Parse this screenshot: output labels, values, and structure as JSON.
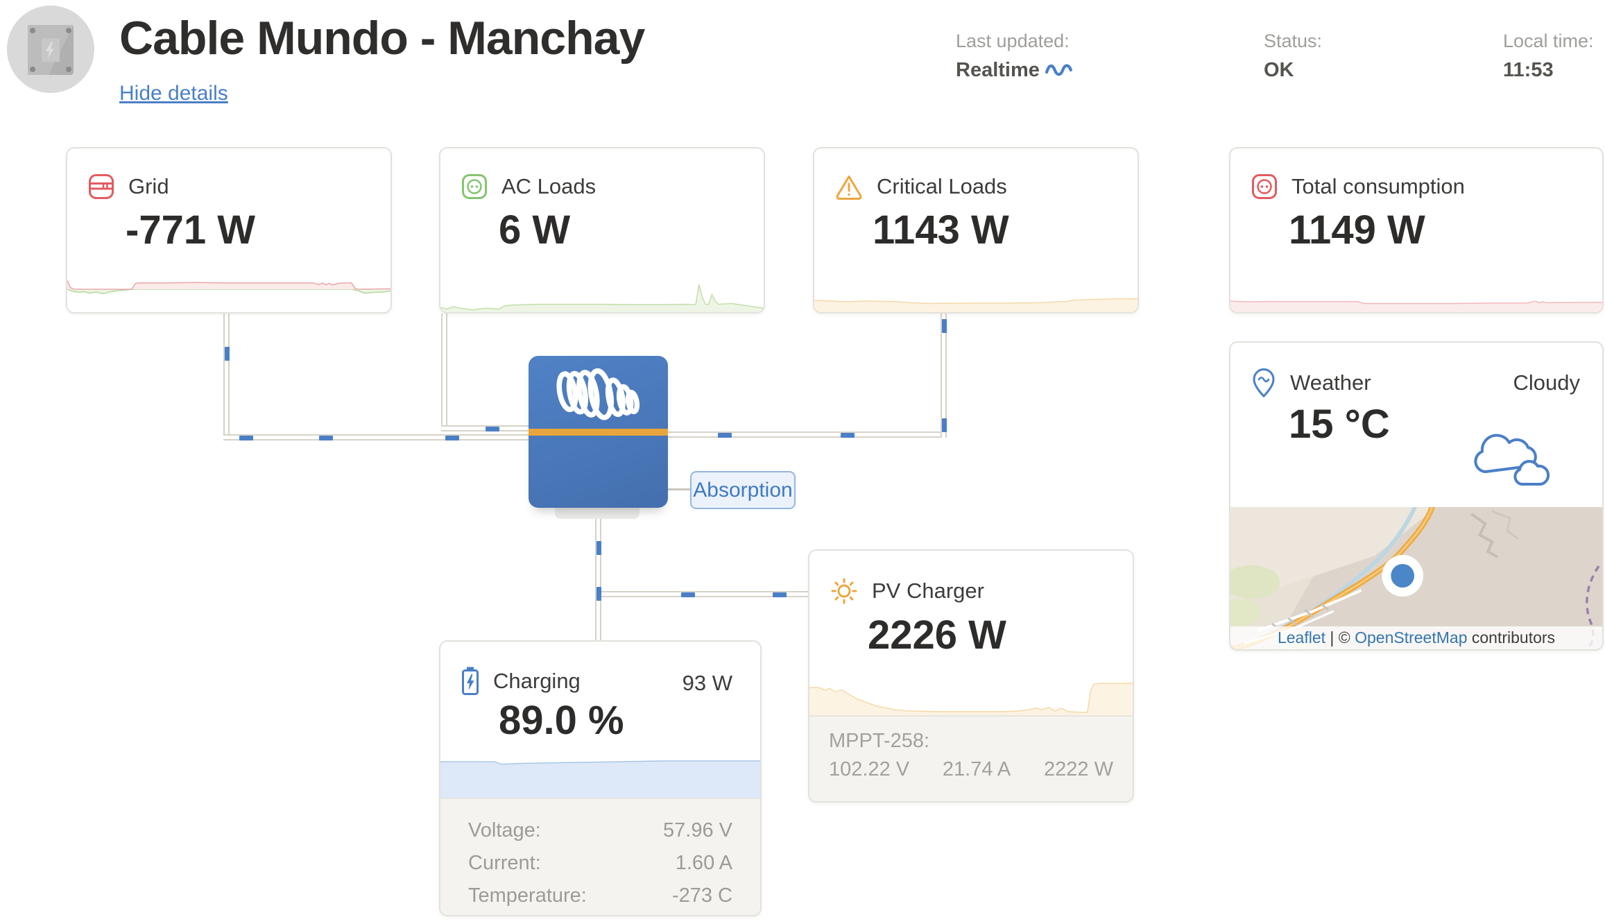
{
  "header": {
    "title": "Cable Mundo - Manchay",
    "hide_details": "Hide details",
    "last_updated_label": "Last updated:",
    "last_updated_value": "Realtime",
    "status_label": "Status:",
    "status_value": "OK",
    "local_time_label": "Local time:",
    "local_time_value": "11:53"
  },
  "inverter": {
    "state": "Absorption"
  },
  "cards": {
    "grid": {
      "label": "Grid",
      "value": "-771 W"
    },
    "ac_loads": {
      "label": "AC Loads",
      "value": "6 W"
    },
    "critical_loads": {
      "label": "Critical Loads",
      "value": "1143 W"
    },
    "total_consumption": {
      "label": "Total consumption",
      "value": "1149 W"
    },
    "weather": {
      "label": "Weather",
      "condition": "Cloudy",
      "temperature": "15 °C",
      "attribution": {
        "leaflet": "Leaflet",
        "sep": " | © ",
        "osm": "OpenStreetMap",
        "contributors": " contributors"
      }
    },
    "pv_charger": {
      "label": "PV Charger",
      "value": "2226 W",
      "details_title": "MPPT-258:",
      "voltage": "102.22 V",
      "current": "21.74 A",
      "power": "2222 W"
    },
    "battery": {
      "label": "Charging",
      "power": "93 W",
      "soc": "89.0 %",
      "rows": [
        {
          "label": "Voltage:",
          "value": "57.96 V"
        },
        {
          "label": "Current:",
          "value": "1.60 A"
        },
        {
          "label": "Temperature:",
          "value": "-273 C"
        }
      ]
    }
  },
  "colors": {
    "brand_blue": "#4a7fc7",
    "red": "#e25b5f",
    "green": "#84c46e",
    "orange": "#eda63f",
    "inverter_blue": "#4b7abf",
    "stripe_orange": "#e8a53e"
  },
  "chart_data": [
    {
      "name": "grid",
      "type": "area",
      "title": "Grid power sparkline",
      "baseline_pct": 58,
      "series": [
        {
          "name": "export",
          "stroke": "#b2d89a",
          "fill": "#ecf5e4",
          "points": [
            [
              0,
              0
            ],
            [
              2,
              -6
            ],
            [
              4,
              -8
            ],
            [
              5,
              -6
            ],
            [
              7,
              -10
            ],
            [
              9,
              -7
            ],
            [
              11,
              -11
            ],
            [
              13,
              -7
            ],
            [
              15,
              -4
            ],
            [
              18,
              -2
            ],
            [
              20,
              0
            ],
            [
              88,
              0
            ],
            [
              90,
              -4
            ],
            [
              92,
              -10
            ],
            [
              95,
              -8
            ],
            [
              98,
              -7
            ],
            [
              100,
              -4
            ]
          ]
        },
        {
          "name": "import",
          "stroke": "#eba6aa",
          "fill": "#fbebeb",
          "points": [
            [
              0,
              22
            ],
            [
              1,
              4
            ],
            [
              2,
              0
            ],
            [
              20,
              0
            ],
            [
              21,
              14
            ],
            [
              22,
              16
            ],
            [
              30,
              16
            ],
            [
              40,
              17
            ],
            [
              50,
              16
            ],
            [
              60,
              16
            ],
            [
              70,
              16
            ],
            [
              76,
              16
            ],
            [
              78,
              12
            ],
            [
              79,
              16
            ],
            [
              80,
              11
            ],
            [
              81,
              15
            ],
            [
              82,
              11
            ],
            [
              84,
              15
            ],
            [
              86,
              16
            ],
            [
              88,
              16
            ],
            [
              89,
              2
            ],
            [
              90,
              0
            ],
            [
              100,
              1
            ]
          ]
        }
      ]
    },
    {
      "name": "ac_loads",
      "type": "area",
      "title": "AC loads sparkline",
      "baseline_pct": 0,
      "series": [
        {
          "name": "load",
          "stroke": "#c3dfa9",
          "fill": "#eef5e6",
          "points": [
            [
              0,
              12
            ],
            [
              2,
              8
            ],
            [
              4,
              14
            ],
            [
              6,
              10
            ],
            [
              10,
              6
            ],
            [
              14,
              10
            ],
            [
              18,
              8
            ],
            [
              20,
              16
            ],
            [
              22,
              18
            ],
            [
              30,
              20
            ],
            [
              40,
              20
            ],
            [
              50,
              20
            ],
            [
              60,
              19
            ],
            [
              70,
              19
            ],
            [
              75,
              20
            ],
            [
              78,
              19
            ],
            [
              79,
              20
            ],
            [
              80,
              70
            ],
            [
              81,
              38
            ],
            [
              82,
              20
            ],
            [
              83,
              20
            ],
            [
              84,
              45
            ],
            [
              85,
              28
            ],
            [
              86,
              20
            ],
            [
              90,
              22
            ],
            [
              95,
              16
            ],
            [
              100,
              10
            ]
          ]
        }
      ]
    },
    {
      "name": "critical_loads",
      "type": "area",
      "title": "Critical loads sparkline",
      "baseline_pct": 0,
      "series": [
        {
          "name": "load",
          "stroke": "#f3d9a9",
          "fill": "#fdf3e2",
          "points": [
            [
              0,
              30
            ],
            [
              5,
              28
            ],
            [
              10,
              26
            ],
            [
              15,
              28
            ],
            [
              25,
              27
            ],
            [
              30,
              24
            ],
            [
              35,
              22
            ],
            [
              50,
              23
            ],
            [
              60,
              23
            ],
            [
              70,
              24
            ],
            [
              75,
              26
            ],
            [
              78,
              27
            ],
            [
              80,
              30
            ],
            [
              85,
              32
            ],
            [
              90,
              33
            ],
            [
              100,
              34
            ]
          ]
        }
      ]
    },
    {
      "name": "total_consumption",
      "type": "area",
      "title": "Total consumption sparkline",
      "baseline_pct": 0,
      "series": [
        {
          "name": "load",
          "stroke": "#f2b8bb",
          "fill": "#fbecec",
          "points": [
            [
              0,
              28
            ],
            [
              5,
              26
            ],
            [
              10,
              27
            ],
            [
              20,
              27
            ],
            [
              34,
              27
            ],
            [
              36,
              22
            ],
            [
              50,
              22
            ],
            [
              60,
              22
            ],
            [
              70,
              23
            ],
            [
              80,
              23
            ],
            [
              82,
              28
            ],
            [
              83,
              24
            ],
            [
              84,
              26
            ],
            [
              85,
              24
            ],
            [
              100,
              25
            ]
          ]
        }
      ]
    },
    {
      "name": "pv_charger",
      "type": "area",
      "title": "PV charger power sparkline",
      "baseline_pct": 0,
      "series": [
        {
          "name": "pv",
          "stroke": "#f5d9a8",
          "fill": "#fdf3e3",
          "points": [
            [
              0,
              78
            ],
            [
              3,
              78
            ],
            [
              5,
              70
            ],
            [
              6,
              76
            ],
            [
              7,
              72
            ],
            [
              8,
              66
            ],
            [
              10,
              72
            ],
            [
              12,
              60
            ],
            [
              15,
              45
            ],
            [
              18,
              35
            ],
            [
              20,
              28
            ],
            [
              25,
              18
            ],
            [
              30,
              12
            ],
            [
              40,
              10
            ],
            [
              50,
              10
            ],
            [
              60,
              10
            ],
            [
              65,
              12
            ],
            [
              68,
              16
            ],
            [
              70,
              20
            ],
            [
              72,
              16
            ],
            [
              74,
              22
            ],
            [
              76,
              12
            ],
            [
              78,
              20
            ],
            [
              80,
              10
            ],
            [
              85,
              8
            ],
            [
              86,
              8
            ],
            [
              87,
              70
            ],
            [
              88,
              88
            ],
            [
              90,
              90
            ],
            [
              100,
              90
            ]
          ]
        }
      ]
    },
    {
      "name": "battery_soc",
      "type": "area",
      "title": "Battery state of charge sparkline",
      "baseline_pct": 0,
      "series": [
        {
          "name": "soc",
          "stroke": "#a9c6e8",
          "fill": "#dde8f8",
          "points": [
            [
              0,
              88
            ],
            [
              10,
              88
            ],
            [
              17,
              88
            ],
            [
              19,
              82
            ],
            [
              25,
              84
            ],
            [
              40,
              86
            ],
            [
              55,
              88
            ],
            [
              70,
              90
            ],
            [
              85,
              90
            ],
            [
              100,
              90
            ]
          ]
        }
      ]
    }
  ]
}
